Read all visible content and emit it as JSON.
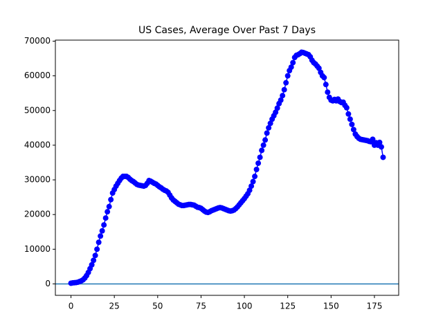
{
  "chart_data": {
    "type": "line",
    "title": "US Cases, Average Over Past 7 Days",
    "x": [
      0,
      1,
      2,
      3,
      4,
      5,
      6,
      7,
      8,
      9,
      10,
      11,
      12,
      13,
      14,
      15,
      16,
      17,
      18,
      19,
      20,
      21,
      22,
      23,
      24,
      25,
      26,
      27,
      28,
      29,
      30,
      31,
      32,
      33,
      34,
      35,
      36,
      37,
      38,
      39,
      40,
      41,
      42,
      43,
      44,
      45,
      46,
      47,
      48,
      49,
      50,
      51,
      52,
      53,
      54,
      55,
      56,
      57,
      58,
      59,
      60,
      61,
      62,
      63,
      64,
      65,
      66,
      67,
      68,
      69,
      70,
      71,
      72,
      73,
      74,
      75,
      76,
      77,
      78,
      79,
      80,
      81,
      82,
      83,
      84,
      85,
      86,
      87,
      88,
      89,
      90,
      91,
      92,
      93,
      94,
      95,
      96,
      97,
      98,
      99,
      100,
      101,
      102,
      103,
      104,
      105,
      106,
      107,
      108,
      109,
      110,
      111,
      112,
      113,
      114,
      115,
      116,
      117,
      118,
      119,
      120,
      121,
      122,
      123,
      124,
      125,
      126,
      127,
      128,
      129,
      130,
      131,
      132,
      133,
      134,
      135,
      136,
      137,
      138,
      139,
      140,
      141,
      142,
      143,
      144,
      145,
      146,
      147,
      148,
      149,
      150,
      151,
      152,
      153,
      154,
      155,
      156,
      157,
      158,
      159,
      160,
      161,
      162,
      163,
      164,
      165,
      166,
      167,
      168,
      169,
      170,
      171,
      172,
      173,
      174,
      175,
      176,
      177,
      178,
      179,
      180
    ],
    "series": [
      {
        "color": "#0000ff",
        "values": [
          200,
          300,
          350,
          400,
          500,
          700,
          900,
          1200,
          1700,
          2400,
          3300,
          4400,
          5500,
          6800,
          8200,
          10000,
          12000,
          13800,
          15300,
          17000,
          19000,
          20800,
          22300,
          24300,
          26200,
          27200,
          28200,
          29000,
          29800,
          30500,
          31000,
          31000,
          31000,
          30700,
          30200,
          29800,
          29500,
          29100,
          28700,
          28500,
          28400,
          28300,
          28200,
          28400,
          29000,
          29800,
          29600,
          29300,
          29000,
          28800,
          28400,
          28000,
          27700,
          27300,
          27000,
          26800,
          26400,
          25600,
          24800,
          24200,
          23800,
          23400,
          23000,
          22800,
          22600,
          22600,
          22700,
          22800,
          22900,
          22900,
          22800,
          22700,
          22400,
          22100,
          22000,
          21800,
          21400,
          21000,
          20700,
          20600,
          20800,
          21100,
          21300,
          21500,
          21700,
          21900,
          22000,
          21900,
          21700,
          21500,
          21300,
          21100,
          21000,
          21100,
          21300,
          21700,
          22200,
          22800,
          23400,
          24000,
          24600,
          25300,
          26000,
          27000,
          28200,
          29500,
          31000,
          33000,
          34800,
          36500,
          38500,
          40000,
          41500,
          43500,
          45000,
          46300,
          47500,
          48500,
          49500,
          50700,
          52000,
          53000,
          54300,
          56000,
          58000,
          60000,
          61500,
          62500,
          63800,
          65300,
          65900,
          66100,
          66400,
          66800,
          66700,
          66500,
          66300,
          66100,
          65500,
          64500,
          63800,
          63400,
          62800,
          62200,
          61000,
          60000,
          59500,
          57500,
          55300,
          53800,
          53000,
          52800,
          53200,
          52800,
          53300,
          52600,
          52300,
          52400,
          51500,
          50800,
          49000,
          47500,
          46000,
          44500,
          43200,
          42500,
          42000,
          41700,
          41600,
          41500,
          41400,
          41300,
          41100,
          41000,
          41700,
          40000,
          40700,
          40000,
          40800,
          39500,
          36500
        ]
      }
    ],
    "hline": {
      "value": 0,
      "color": "#1f77b4"
    },
    "xlim": [
      -9,
      189
    ],
    "ylim": [
      -3300,
      70300
    ],
    "xticks": [
      0,
      25,
      50,
      75,
      100,
      125,
      150,
      175
    ],
    "yticks": [
      0,
      10000,
      20000,
      30000,
      40000,
      50000,
      60000,
      70000
    ]
  }
}
